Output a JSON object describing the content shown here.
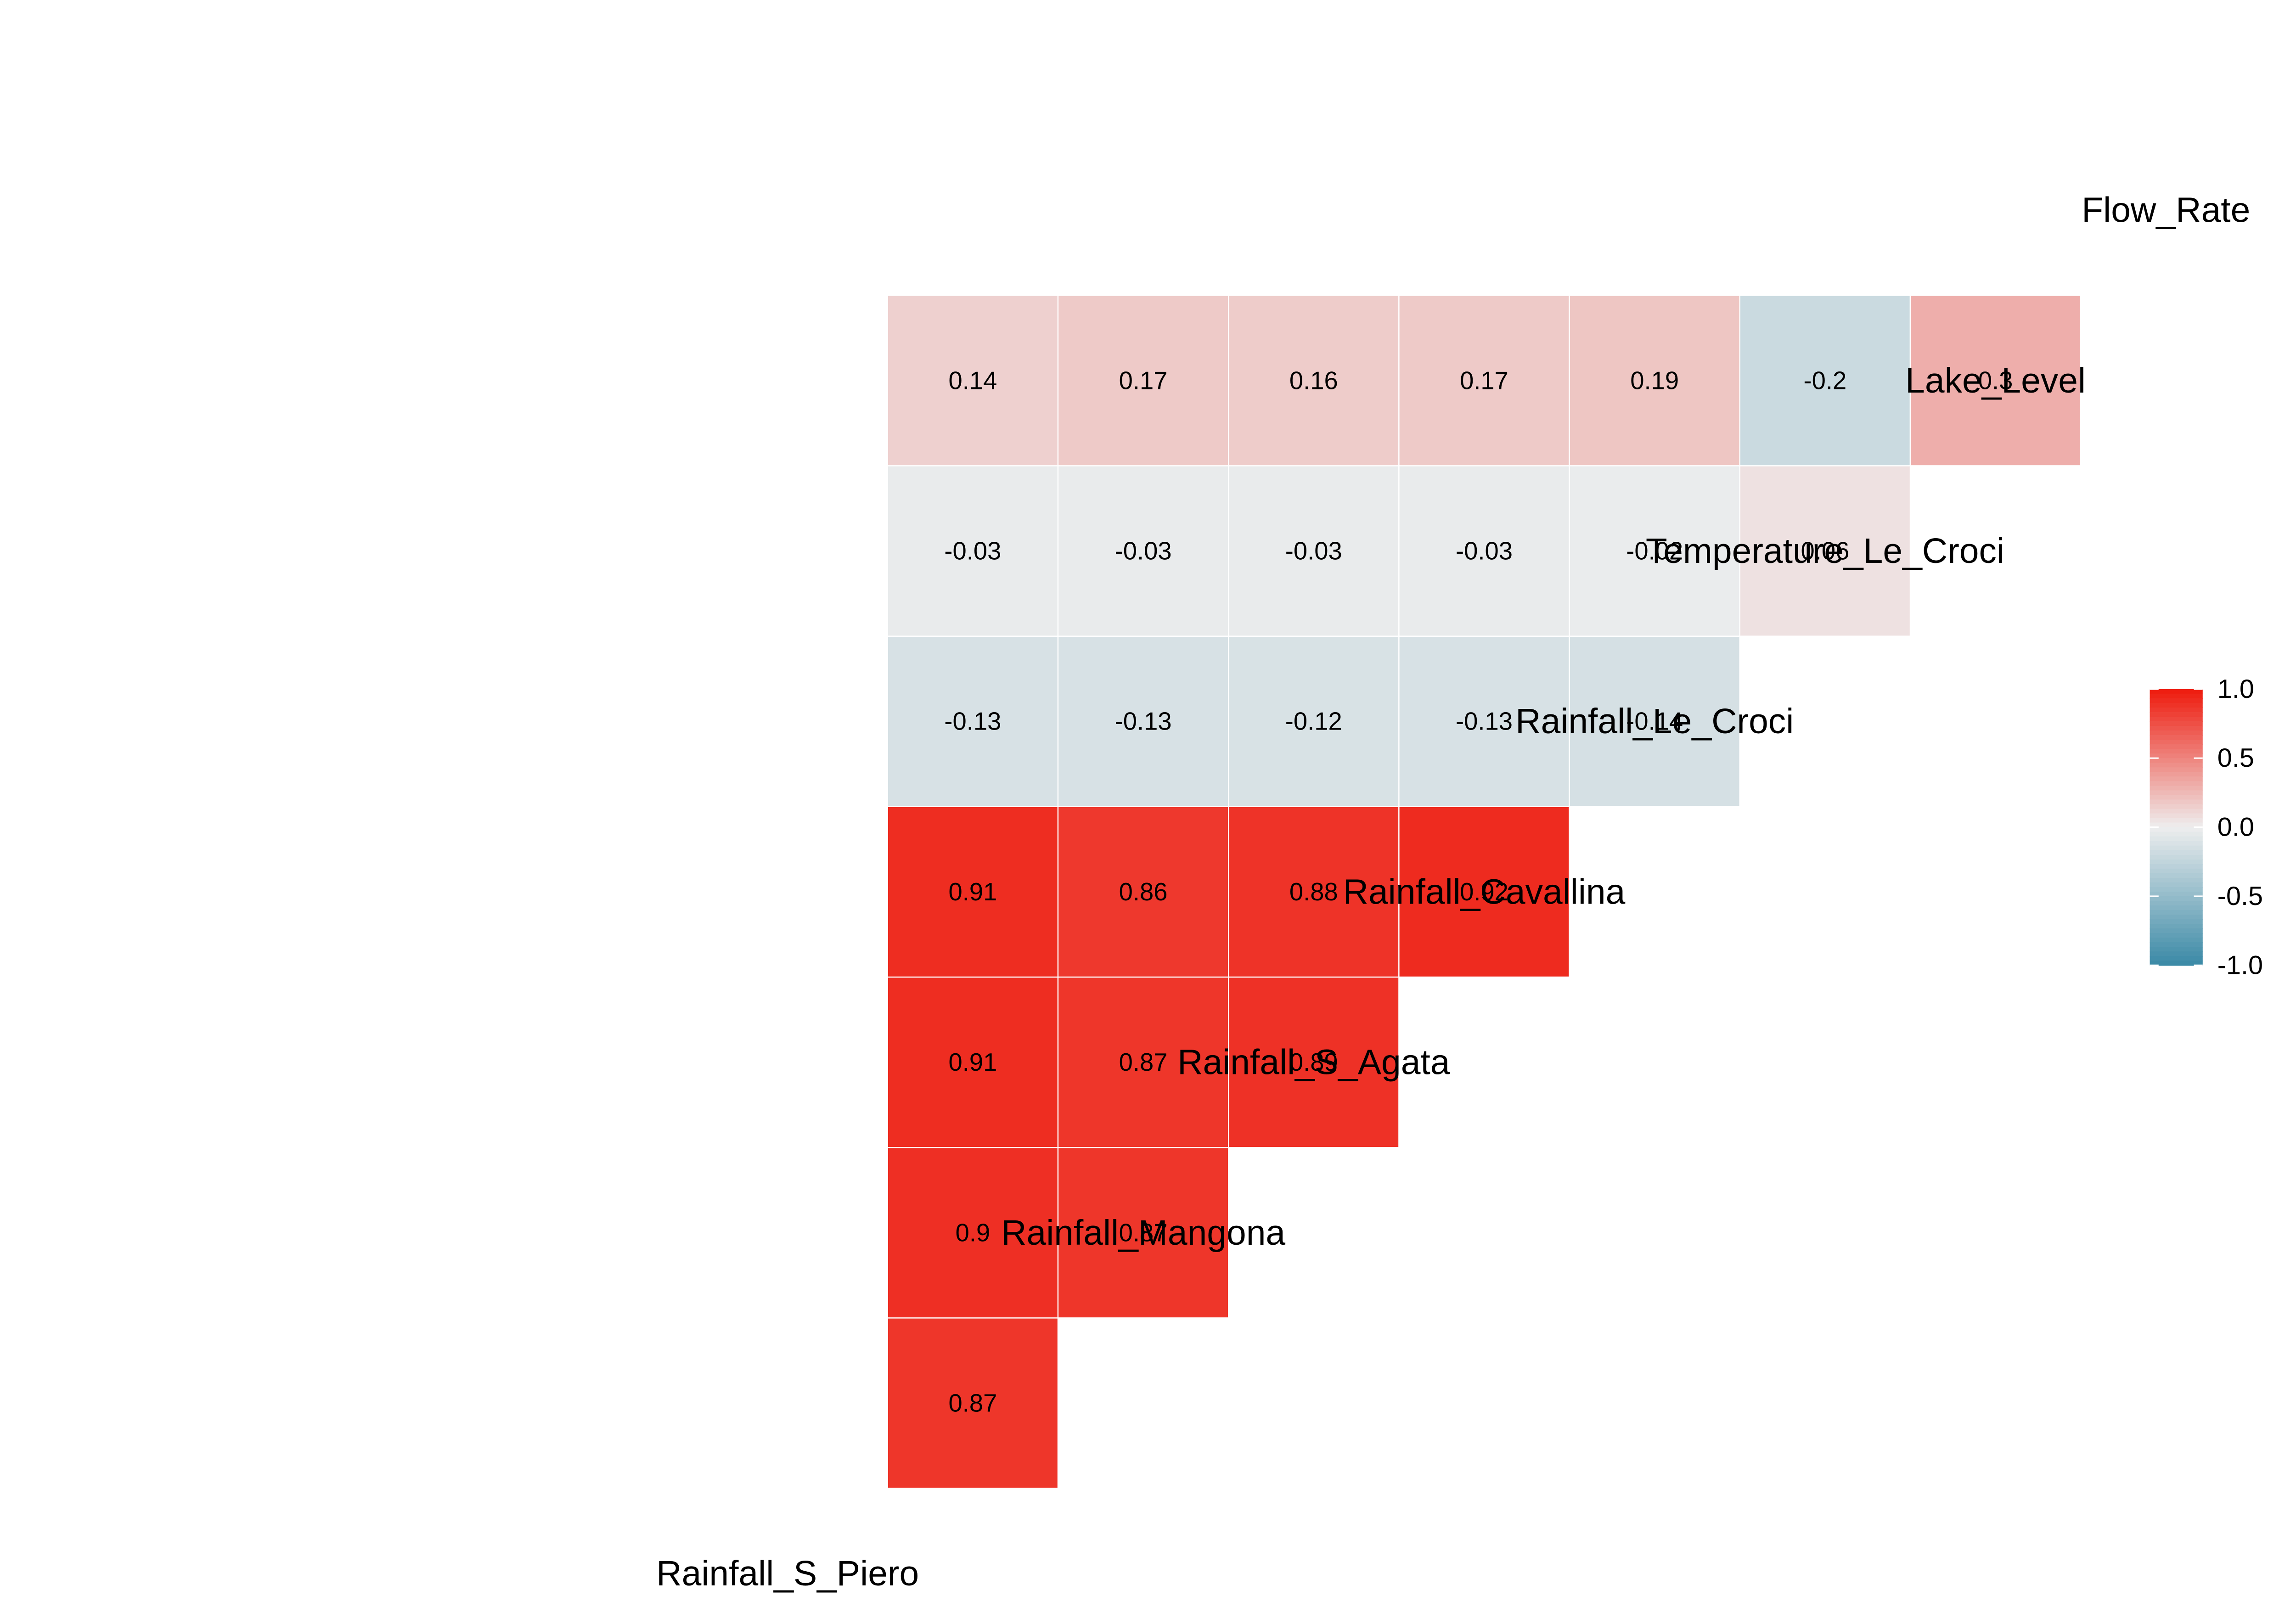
{
  "chart_data": {
    "type": "heatmap",
    "variables": [
      "Rainfall_S_Piero",
      "Rainfall_Mangona",
      "Rainfall_S_Agata",
      "Rainfall_Cavallina",
      "Rainfall_Le_Croci",
      "Temperature_Le_Croci",
      "Lake_Level",
      "Flow_Rate"
    ],
    "correlations": [
      {
        "row": "Rainfall_Mangona",
        "col": "Rainfall_S_Piero",
        "value": 0.87,
        "label": "0.87"
      },
      {
        "row": "Rainfall_S_Agata",
        "col": "Rainfall_S_Piero",
        "value": 0.9,
        "label": "0.9"
      },
      {
        "row": "Rainfall_S_Agata",
        "col": "Rainfall_Mangona",
        "value": 0.87,
        "label": "0.87"
      },
      {
        "row": "Rainfall_Cavallina",
        "col": "Rainfall_S_Piero",
        "value": 0.91,
        "label": "0.91"
      },
      {
        "row": "Rainfall_Cavallina",
        "col": "Rainfall_Mangona",
        "value": 0.87,
        "label": "0.87"
      },
      {
        "row": "Rainfall_Cavallina",
        "col": "Rainfall_S_Agata",
        "value": 0.89,
        "label": "0.89"
      },
      {
        "row": "Rainfall_Le_Croci",
        "col": "Rainfall_S_Piero",
        "value": 0.91,
        "label": "0.91"
      },
      {
        "row": "Rainfall_Le_Croci",
        "col": "Rainfall_Mangona",
        "value": 0.86,
        "label": "0.86"
      },
      {
        "row": "Rainfall_Le_Croci",
        "col": "Rainfall_S_Agata",
        "value": 0.88,
        "label": "0.88"
      },
      {
        "row": "Rainfall_Le_Croci",
        "col": "Rainfall_Cavallina",
        "value": 0.92,
        "label": "0.92"
      },
      {
        "row": "Temperature_Le_Croci",
        "col": "Rainfall_S_Piero",
        "value": -0.13,
        "label": "-0.13"
      },
      {
        "row": "Temperature_Le_Croci",
        "col": "Rainfall_Mangona",
        "value": -0.13,
        "label": "-0.13"
      },
      {
        "row": "Temperature_Le_Croci",
        "col": "Rainfall_S_Agata",
        "value": -0.12,
        "label": "-0.12"
      },
      {
        "row": "Temperature_Le_Croci",
        "col": "Rainfall_Cavallina",
        "value": -0.13,
        "label": "-0.13"
      },
      {
        "row": "Temperature_Le_Croci",
        "col": "Rainfall_Le_Croci",
        "value": -0.14,
        "label": "-0.14"
      },
      {
        "row": "Lake_Level",
        "col": "Rainfall_S_Piero",
        "value": -0.03,
        "label": "-0.03"
      },
      {
        "row": "Lake_Level",
        "col": "Rainfall_Mangona",
        "value": -0.03,
        "label": "-0.03"
      },
      {
        "row": "Lake_Level",
        "col": "Rainfall_S_Agata",
        "value": -0.03,
        "label": "-0.03"
      },
      {
        "row": "Lake_Level",
        "col": "Rainfall_Cavallina",
        "value": -0.03,
        "label": "-0.03"
      },
      {
        "row": "Lake_Level",
        "col": "Rainfall_Le_Croci",
        "value": -0.02,
        "label": "-0.02"
      },
      {
        "row": "Lake_Level",
        "col": "Temperature_Le_Croci",
        "value": 0.06,
        "label": "0.06"
      },
      {
        "row": "Flow_Rate",
        "col": "Rainfall_S_Piero",
        "value": 0.14,
        "label": "0.14"
      },
      {
        "row": "Flow_Rate",
        "col": "Rainfall_Mangona",
        "value": 0.17,
        "label": "0.17"
      },
      {
        "row": "Flow_Rate",
        "col": "Rainfall_S_Agata",
        "value": 0.16,
        "label": "0.16"
      },
      {
        "row": "Flow_Rate",
        "col": "Rainfall_Cavallina",
        "value": 0.17,
        "label": "0.17"
      },
      {
        "row": "Flow_Rate",
        "col": "Rainfall_Le_Croci",
        "value": 0.19,
        "label": "0.19"
      },
      {
        "row": "Flow_Rate",
        "col": "Temperature_Le_Croci",
        "value": -0.2,
        "label": "-0.2"
      },
      {
        "row": "Flow_Rate",
        "col": "Lake_Level",
        "value": 0.3,
        "label": "0.3"
      }
    ],
    "legend": {
      "position": "right",
      "ticks": [
        "1.0",
        "0.5",
        "0.0",
        "-0.5",
        "-1.0"
      ],
      "tick_values": [
        1.0,
        0.5,
        0.0,
        -0.5,
        -1.0
      ],
      "range": [
        -1,
        1
      ]
    },
    "colors": {
      "low": "#3a89a6",
      "mid": "#eeeeee",
      "high": "#ee1a0d"
    },
    "grid": false
  }
}
